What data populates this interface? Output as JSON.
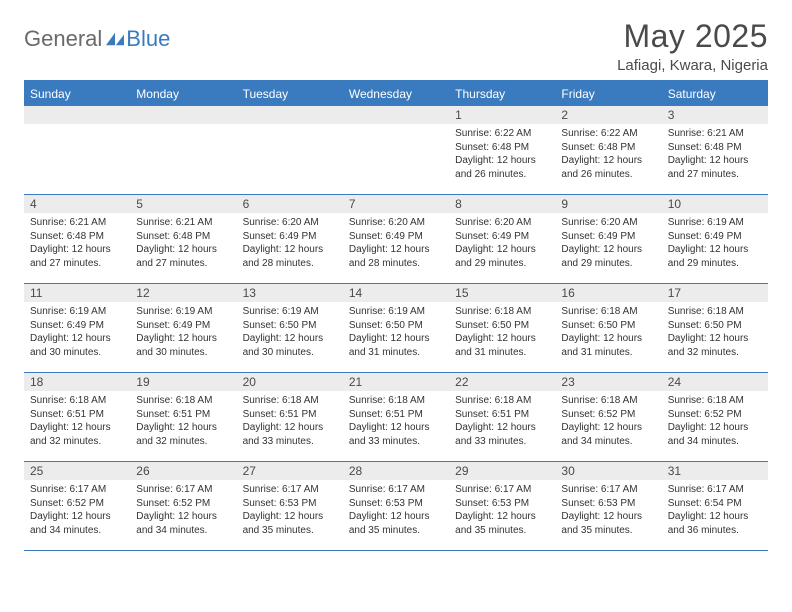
{
  "brand": {
    "part1": "General",
    "part2": "Blue"
  },
  "title": "May 2025",
  "location": "Lafiagi, Kwara, Nigeria",
  "colors": {
    "accent": "#3a7bbf",
    "grey_bg": "#ececec",
    "text": "#4a4a4a",
    "logo_grey": "#6a6a6a"
  },
  "calendar": {
    "type": "table",
    "columns": [
      "Sunday",
      "Monday",
      "Tuesday",
      "Wednesday",
      "Thursday",
      "Friday",
      "Saturday"
    ],
    "cell_fontsize_pt": 10,
    "header_fontsize_pt": 12,
    "weeks": [
      [
        null,
        null,
        null,
        null,
        {
          "d": "1",
          "sr": "6:22 AM",
          "ss": "6:48 PM",
          "dl": "12 hours and 26 minutes."
        },
        {
          "d": "2",
          "sr": "6:22 AM",
          "ss": "6:48 PM",
          "dl": "12 hours and 26 minutes."
        },
        {
          "d": "3",
          "sr": "6:21 AM",
          "ss": "6:48 PM",
          "dl": "12 hours and 27 minutes."
        }
      ],
      [
        {
          "d": "4",
          "sr": "6:21 AM",
          "ss": "6:48 PM",
          "dl": "12 hours and 27 minutes."
        },
        {
          "d": "5",
          "sr": "6:21 AM",
          "ss": "6:48 PM",
          "dl": "12 hours and 27 minutes."
        },
        {
          "d": "6",
          "sr": "6:20 AM",
          "ss": "6:49 PM",
          "dl": "12 hours and 28 minutes."
        },
        {
          "d": "7",
          "sr": "6:20 AM",
          "ss": "6:49 PM",
          "dl": "12 hours and 28 minutes."
        },
        {
          "d": "8",
          "sr": "6:20 AM",
          "ss": "6:49 PM",
          "dl": "12 hours and 29 minutes."
        },
        {
          "d": "9",
          "sr": "6:20 AM",
          "ss": "6:49 PM",
          "dl": "12 hours and 29 minutes."
        },
        {
          "d": "10",
          "sr": "6:19 AM",
          "ss": "6:49 PM",
          "dl": "12 hours and 29 minutes."
        }
      ],
      [
        {
          "d": "11",
          "sr": "6:19 AM",
          "ss": "6:49 PM",
          "dl": "12 hours and 30 minutes."
        },
        {
          "d": "12",
          "sr": "6:19 AM",
          "ss": "6:49 PM",
          "dl": "12 hours and 30 minutes."
        },
        {
          "d": "13",
          "sr": "6:19 AM",
          "ss": "6:50 PM",
          "dl": "12 hours and 30 minutes."
        },
        {
          "d": "14",
          "sr": "6:19 AM",
          "ss": "6:50 PM",
          "dl": "12 hours and 31 minutes."
        },
        {
          "d": "15",
          "sr": "6:18 AM",
          "ss": "6:50 PM",
          "dl": "12 hours and 31 minutes."
        },
        {
          "d": "16",
          "sr": "6:18 AM",
          "ss": "6:50 PM",
          "dl": "12 hours and 31 minutes."
        },
        {
          "d": "17",
          "sr": "6:18 AM",
          "ss": "6:50 PM",
          "dl": "12 hours and 32 minutes."
        }
      ],
      [
        {
          "d": "18",
          "sr": "6:18 AM",
          "ss": "6:51 PM",
          "dl": "12 hours and 32 minutes."
        },
        {
          "d": "19",
          "sr": "6:18 AM",
          "ss": "6:51 PM",
          "dl": "12 hours and 32 minutes."
        },
        {
          "d": "20",
          "sr": "6:18 AM",
          "ss": "6:51 PM",
          "dl": "12 hours and 33 minutes."
        },
        {
          "d": "21",
          "sr": "6:18 AM",
          "ss": "6:51 PM",
          "dl": "12 hours and 33 minutes."
        },
        {
          "d": "22",
          "sr": "6:18 AM",
          "ss": "6:51 PM",
          "dl": "12 hours and 33 minutes."
        },
        {
          "d": "23",
          "sr": "6:18 AM",
          "ss": "6:52 PM",
          "dl": "12 hours and 34 minutes."
        },
        {
          "d": "24",
          "sr": "6:18 AM",
          "ss": "6:52 PM",
          "dl": "12 hours and 34 minutes."
        }
      ],
      [
        {
          "d": "25",
          "sr": "6:17 AM",
          "ss": "6:52 PM",
          "dl": "12 hours and 34 minutes."
        },
        {
          "d": "26",
          "sr": "6:17 AM",
          "ss": "6:52 PM",
          "dl": "12 hours and 34 minutes."
        },
        {
          "d": "27",
          "sr": "6:17 AM",
          "ss": "6:53 PM",
          "dl": "12 hours and 35 minutes."
        },
        {
          "d": "28",
          "sr": "6:17 AM",
          "ss": "6:53 PM",
          "dl": "12 hours and 35 minutes."
        },
        {
          "d": "29",
          "sr": "6:17 AM",
          "ss": "6:53 PM",
          "dl": "12 hours and 35 minutes."
        },
        {
          "d": "30",
          "sr": "6:17 AM",
          "ss": "6:53 PM",
          "dl": "12 hours and 35 minutes."
        },
        {
          "d": "31",
          "sr": "6:17 AM",
          "ss": "6:54 PM",
          "dl": "12 hours and 36 minutes."
        }
      ]
    ],
    "labels": {
      "sunrise": "Sunrise:",
      "sunset": "Sunset:",
      "daylight": "Daylight:"
    }
  }
}
